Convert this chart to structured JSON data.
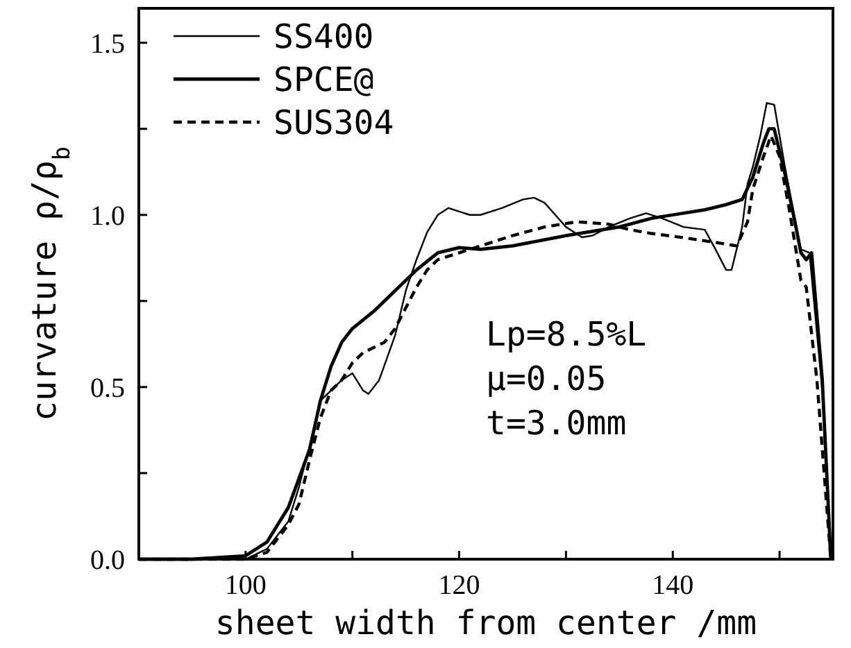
{
  "chart_data": {
    "type": "line",
    "xlabel": "sheet width from center /mm",
    "ylabel": "curvature  ρ/ρ$_{b}$",
    "xlim": [
      90,
      155
    ],
    "ylim": [
      0,
      1.6
    ],
    "xticks": [
      100,
      {
        "value": 110,
        "label": null
      },
      120,
      {
        "value": 130,
        "label": null
      },
      140,
      {
        "value": 150,
        "label": null
      }
    ],
    "yticks": [
      {
        "value": 0,
        "label": "0.0"
      },
      {
        "value": 0.25,
        "label": null
      },
      0.5,
      {
        "value": 0.75,
        "label": null
      },
      {
        "value": 1,
        "label": "1.0"
      },
      {
        "value": 1.25,
        "label": null
      },
      1.5
    ],
    "legend": "top left",
    "grid": false,
    "annotations": [
      "Lp=8.5%L",
      "μ=0.05",
      "t=3.0mm"
    ],
    "series": [
      {
        "name": "SS400",
        "color": "#000000",
        "line_style": "solid",
        "x": [
          90,
          95,
          100,
          102,
          104,
          105,
          106,
          107,
          108,
          109,
          110,
          111,
          111.5,
          112.5,
          114,
          115,
          116,
          117,
          118,
          119,
          120,
          121,
          122,
          124,
          126,
          127,
          128,
          129,
          130,
          131.5,
          132.5,
          134,
          136,
          137.5,
          139,
          141,
          143,
          144,
          145,
          145.5,
          146.5,
          147,
          147.5,
          148.2,
          148.8,
          149.5,
          150.5,
          151.5,
          152,
          152.8,
          154,
          154.8
        ],
        "values": [
          0,
          0,
          0,
          0.03,
          0.11,
          0.21,
          0.33,
          0.46,
          0.49,
          0.52,
          0.54,
          0.49,
          0.48,
          0.52,
          0.65,
          0.78,
          0.87,
          0.95,
          1.0,
          1.02,
          1.01,
          1.0,
          1.0,
          1.02,
          1.045,
          1.05,
          1.035,
          1.0,
          0.965,
          0.935,
          0.94,
          0.965,
          0.99,
          1.005,
          0.99,
          0.965,
          0.957,
          0.9,
          0.84,
          0.84,
          0.965,
          1.09,
          1.14,
          1.23,
          1.325,
          1.32,
          1.14,
          0.98,
          0.9,
          0.89,
          0.49,
          0
        ]
      },
      {
        "name": "SPCE@",
        "color": "#000000",
        "line_style": "solid",
        "x": [
          90,
          95,
          100,
          102,
          104,
          106,
          107,
          108,
          109,
          110,
          112,
          114,
          116,
          118,
          120,
          122,
          125,
          130,
          135,
          138,
          140,
          143,
          145,
          146.5,
          147.5,
          148.5,
          149,
          149.5,
          150.5,
          151.5,
          152,
          152.5,
          153,
          154,
          154.8
        ],
        "values": [
          0,
          0,
          0.01,
          0.05,
          0.15,
          0.32,
          0.46,
          0.56,
          0.63,
          0.67,
          0.72,
          0.78,
          0.84,
          0.89,
          0.905,
          0.9,
          0.91,
          0.94,
          0.965,
          0.99,
          1.0,
          1.015,
          1.03,
          1.045,
          1.11,
          1.21,
          1.25,
          1.25,
          1.12,
          0.97,
          0.89,
          0.87,
          0.89,
          0.52,
          0
        ]
      },
      {
        "name": "SUS304",
        "color": "#000000",
        "line_style": "dashed",
        "x": [
          90,
          95,
          100,
          102,
          104,
          105,
          106,
          107,
          108,
          109,
          110,
          111,
          113,
          114,
          115,
          116,
          117,
          118,
          120,
          122,
          125,
          128,
          131,
          134,
          136,
          138,
          141,
          144,
          146,
          147,
          147.5,
          148.5,
          149.2,
          150,
          151,
          152,
          152.5,
          153.5,
          154.8
        ],
        "values": [
          0,
          0,
          0,
          0.02,
          0.1,
          0.16,
          0.29,
          0.41,
          0.49,
          0.52,
          0.57,
          0.6,
          0.63,
          0.67,
          0.73,
          0.79,
          0.84,
          0.87,
          0.89,
          0.91,
          0.94,
          0.965,
          0.98,
          0.973,
          0.957,
          0.946,
          0.934,
          0.92,
          0.91,
          0.98,
          1.075,
          1.17,
          1.23,
          1.17,
          1.0,
          0.81,
          0.79,
          0.52,
          0
        ]
      }
    ]
  }
}
